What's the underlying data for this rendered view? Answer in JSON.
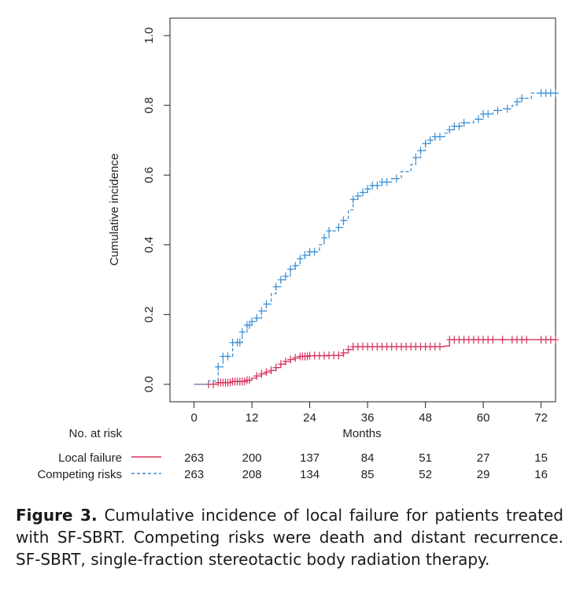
{
  "chart_data": {
    "type": "line",
    "title": "",
    "xlabel": "Months",
    "ylabel": "Cumulative incidence",
    "xlim": [
      -5,
      75
    ],
    "ylim": [
      -0.05,
      1.05
    ],
    "x_ticks": [
      0,
      12,
      24,
      36,
      48,
      60,
      72
    ],
    "y_ticks": [
      0.0,
      0.2,
      0.4,
      0.6,
      0.8,
      1.0
    ],
    "y_tick_labels": [
      "0.0",
      "0.2",
      "0.4",
      "0.6",
      "0.8",
      "1.0"
    ],
    "series": [
      {
        "name": "Local failure",
        "color": "#d6335a",
        "style": "solid",
        "points": [
          [
            0,
            0
          ],
          [
            3,
            0
          ],
          [
            5,
            0.005
          ],
          [
            8,
            0.008
          ],
          [
            11,
            0.012
          ],
          [
            12,
            0.018
          ],
          [
            13,
            0.024
          ],
          [
            14,
            0.03
          ],
          [
            15,
            0.035
          ],
          [
            16,
            0.04
          ],
          [
            17,
            0.048
          ],
          [
            18,
            0.058
          ],
          [
            19,
            0.066
          ],
          [
            20,
            0.071
          ],
          [
            21,
            0.076
          ],
          [
            22,
            0.08
          ],
          [
            24,
            0.082
          ],
          [
            28,
            0.083
          ],
          [
            31,
            0.09
          ],
          [
            32,
            0.1
          ],
          [
            33,
            0.108
          ],
          [
            36,
            0.108
          ],
          [
            40,
            0.108
          ],
          [
            48,
            0.108
          ],
          [
            52,
            0.11
          ],
          [
            53,
            0.128
          ],
          [
            60,
            0.128
          ],
          [
            75,
            0.128
          ]
        ],
        "censor_x": [
          3,
          4,
          5,
          5.5,
          6,
          6.5,
          7,
          7.5,
          8,
          8.5,
          9,
          9.5,
          10,
          10.5,
          11,
          11.5,
          13,
          14,
          15,
          16,
          17,
          18,
          19,
          20,
          21,
          22,
          22.5,
          23,
          23.5,
          24,
          25,
          26,
          27,
          28,
          29,
          30,
          31,
          32,
          33,
          34,
          35,
          36,
          37,
          38,
          39,
          40,
          41,
          42,
          43,
          44,
          45,
          46,
          47,
          48,
          49,
          50,
          51,
          53,
          54,
          55,
          56,
          57,
          58,
          59,
          60,
          61,
          62,
          64,
          66,
          67,
          68,
          69,
          72,
          73,
          74,
          75
        ],
        "risk_counts": [
          "263",
          "200",
          "137",
          "84",
          "51",
          "27",
          "15"
        ]
      },
      {
        "name": "Competing risks",
        "color": "#3a8fd6",
        "style": "dashed",
        "points": [
          [
            0,
            0
          ],
          [
            2,
            0
          ],
          [
            3,
            0.01
          ],
          [
            5,
            0.05
          ],
          [
            6,
            0.08
          ],
          [
            8,
            0.12
          ],
          [
            10,
            0.15
          ],
          [
            11,
            0.17
          ],
          [
            12,
            0.18
          ],
          [
            13,
            0.19
          ],
          [
            14,
            0.21
          ],
          [
            15,
            0.23
          ],
          [
            16,
            0.26
          ],
          [
            17,
            0.28
          ],
          [
            18,
            0.3
          ],
          [
            19,
            0.31
          ],
          [
            20,
            0.33
          ],
          [
            21,
            0.34
          ],
          [
            22,
            0.36
          ],
          [
            23,
            0.37
          ],
          [
            24,
            0.38
          ],
          [
            26,
            0.4
          ],
          [
            27,
            0.42
          ],
          [
            28,
            0.44
          ],
          [
            30,
            0.45
          ],
          [
            31,
            0.47
          ],
          [
            32,
            0.5
          ],
          [
            33,
            0.53
          ],
          [
            34,
            0.54
          ],
          [
            35,
            0.55
          ],
          [
            36,
            0.56
          ],
          [
            37,
            0.57
          ],
          [
            39,
            0.58
          ],
          [
            41,
            0.59
          ],
          [
            43,
            0.61
          ],
          [
            45,
            0.63
          ],
          [
            46,
            0.65
          ],
          [
            47,
            0.67
          ],
          [
            48,
            0.69
          ],
          [
            49,
            0.7
          ],
          [
            50,
            0.71
          ],
          [
            52,
            0.72
          ],
          [
            53,
            0.73
          ],
          [
            54,
            0.74
          ],
          [
            56,
            0.75
          ],
          [
            58,
            0.76
          ],
          [
            60,
            0.775
          ],
          [
            62,
            0.785
          ],
          [
            64,
            0.79
          ],
          [
            66,
            0.8
          ],
          [
            67,
            0.81
          ],
          [
            68,
            0.82
          ],
          [
            70,
            0.835
          ],
          [
            75,
            0.835
          ]
        ],
        "censor_x": [
          5,
          6,
          7,
          8,
          9,
          9.5,
          10,
          11,
          11.5,
          12,
          13,
          14,
          15,
          17,
          18,
          19,
          20,
          21,
          22,
          23,
          24,
          25,
          27,
          28,
          30,
          31,
          33,
          34,
          35,
          36,
          37,
          38,
          39,
          40,
          42,
          46,
          47,
          48,
          49,
          50,
          51,
          53,
          54,
          55,
          56,
          59,
          60,
          61,
          63,
          65,
          67,
          68,
          72,
          73,
          74,
          75
        ],
        "risk_counts": [
          "263",
          "208",
          "134",
          "85",
          "52",
          "29",
          "16"
        ]
      }
    ],
    "risk_table": {
      "header": "No. at risk",
      "rows": [
        "Local failure",
        "Competing risks"
      ]
    }
  },
  "caption": {
    "label": "Figure 3.",
    "text": " Cumulative incidence of local failure for patients treated with SF-SBRT. Competing risks were death and distant recurrence. SF-SBRT, single-fraction stereotactic body radiation therapy."
  }
}
